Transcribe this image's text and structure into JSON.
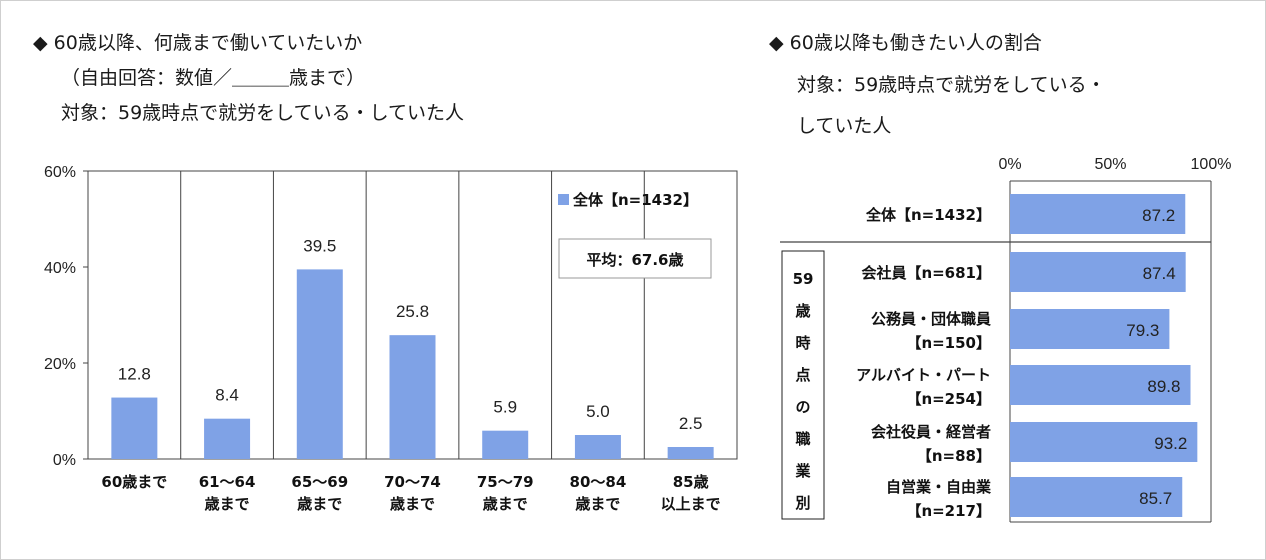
{
  "left_title": {
    "line1": "◆ 60歳以降、何歳まで働いていたいか",
    "line2": "（自由回答：数値／＿＿＿歳まで）",
    "line3": "対象：59歳時点で就労をしている・していた人"
  },
  "right_title": {
    "line1": "◆ 60歳以降も働きたい人の割合",
    "line2": "対象：59歳時点で就労をしている・",
    "line3": "していた人"
  },
  "colors": {
    "bar": "#7fa2e6",
    "bar_stroke": "#6a8fd6",
    "grid": "#444444",
    "text": "#222222"
  },
  "chart_data": [
    {
      "type": "bar",
      "title": "60歳以降、何歳まで働いていたいか",
      "categories": [
        [
          "60歳まで"
        ],
        [
          "61～64",
          "歳まで"
        ],
        [
          "65～69",
          "歳まで"
        ],
        [
          "70～74",
          "歳まで"
        ],
        [
          "75～79",
          "歳まで"
        ],
        [
          "80～84",
          "歳まで"
        ],
        [
          "85歳",
          "以上まで"
        ]
      ],
      "series": [
        {
          "name": "全体【n=1432】",
          "values": [
            12.8,
            8.4,
            39.5,
            25.8,
            5.9,
            5.0,
            2.5
          ]
        }
      ],
      "ylim": [
        0,
        60
      ],
      "yticks": [
        0,
        20,
        40,
        60
      ],
      "ytick_labels": [
        "0%",
        "20%",
        "40%",
        "60%"
      ],
      "legend_label": "全体【n=1432】",
      "annotation": "平均：67.6歳",
      "legend_position": "top-right"
    },
    {
      "type": "bar",
      "orientation": "horizontal",
      "title": "60歳以降も働きたい人の割合",
      "xlim": [
        0,
        100
      ],
      "xticks": [
        0,
        50,
        100
      ],
      "xtick_labels": [
        "0%",
        "50%",
        "100%"
      ],
      "group_label": "59歳時点の職業別",
      "rows": [
        {
          "label_lines": [
            "全体【n=1432】"
          ],
          "value": 87.2
        },
        {
          "label_lines": [
            "会社員【n=681】"
          ],
          "value": 87.4
        },
        {
          "label_lines": [
            "公務員・団体職員",
            "【n=150】"
          ],
          "value": 79.3
        },
        {
          "label_lines": [
            "アルバイト・パート",
            "【n=254】"
          ],
          "value": 89.8
        },
        {
          "label_lines": [
            "会社役員・経営者",
            "【n=88】"
          ],
          "value": 93.2
        },
        {
          "label_lines": [
            "自営業・自由業",
            "【n=217】"
          ],
          "value": 85.7
        }
      ]
    }
  ]
}
